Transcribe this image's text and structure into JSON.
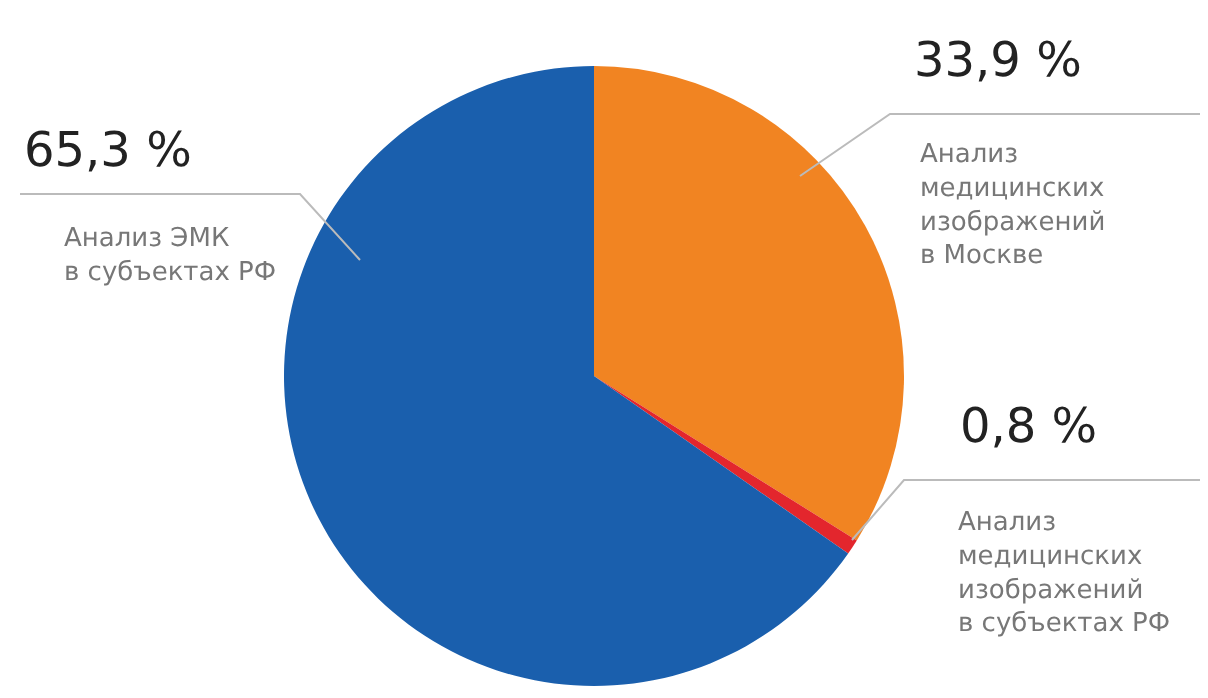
{
  "chart_data": {
    "type": "pie",
    "categories": [
      "Анализ\nмедицинских\nизображений\nв Москве",
      "Анализ\nмедицинских\nизображений\nв субъектах РФ",
      "Анализ ЭМК\nв субъектах РФ"
    ],
    "values": [
      33.9,
      0.8,
      65.3
    ],
    "value_labels": [
      "33,9 %",
      "0,8 %",
      "65,3 %"
    ],
    "colors": [
      "#f18422",
      "#e3262d",
      "#1a5fad"
    ],
    "legend": false
  }
}
